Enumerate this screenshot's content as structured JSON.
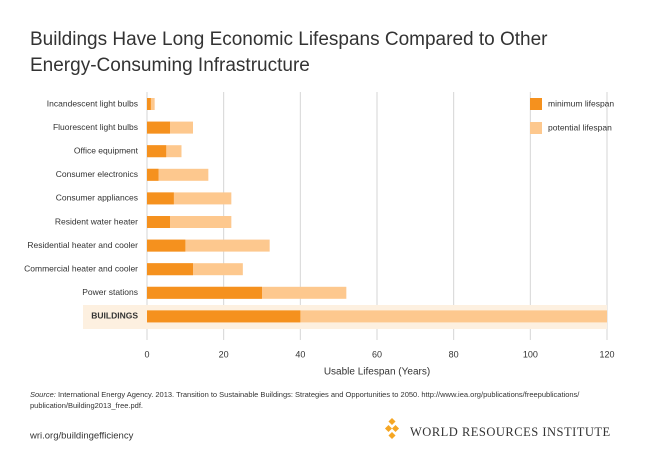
{
  "chart_data": {
    "type": "bar",
    "orientation": "horizontal",
    "title": [
      "Buildings Have Long Economic Lifespans Compared to Other",
      "Energy-Consuming Infrastructure"
    ],
    "categories": [
      "Incandescent light bulbs",
      "Fluorescent light bulbs",
      "Office equipment",
      "Consumer electronics",
      "Consumer appliances",
      "Resident water heater",
      "Residential heater and cooler",
      "Commercial heater and cooler",
      "Power stations",
      "BUILDINGS"
    ],
    "series": [
      {
        "name": "minimum lifespan",
        "color": "#f5911e",
        "values": [
          1,
          6,
          5,
          3,
          7,
          6,
          10,
          12,
          30,
          40
        ]
      },
      {
        "name": "potential lifespan",
        "color": "#fdc88e",
        "values": [
          2,
          12,
          9,
          16,
          22,
          22,
          32,
          25,
          52,
          120
        ]
      }
    ],
    "xlim": [
      0,
      120
    ],
    "xticks": [
      0,
      20,
      40,
      60,
      80,
      100,
      120
    ],
    "grid": true,
    "xlabel": "Usable Lifespan (Years)",
    "legend": "top-right"
  },
  "source": {
    "label": "Source:",
    "lines": [
      " International Energy Agency. 2013. Transition to Sustainable Buildings: Strategies and Opportunities to 2050. http://www.iea.org/publications/freepublications/",
      "publication/Building2013_free.pdf."
    ]
  },
  "footer": {
    "url": "wri.org/buildingefficiency",
    "org": "WORLD RESOURCES INSTITUTE"
  }
}
